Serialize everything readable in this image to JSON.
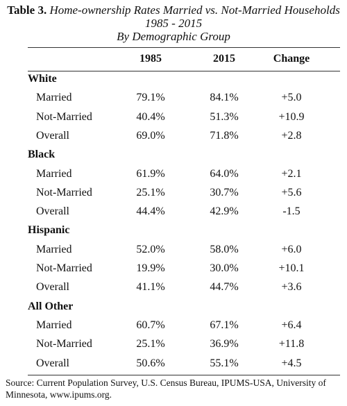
{
  "header": {
    "label": "Table 3.",
    "title": "Home-ownership Rates Married vs. Not-Married Households",
    "subtitle": "1985 - 2015",
    "subtitle2": "By Demographic Group"
  },
  "table": {
    "columns": [
      "1985",
      "2015",
      "Change"
    ],
    "groups": [
      {
        "name": "White",
        "rows": [
          [
            "Married",
            "79.1%",
            "84.1%",
            "+5.0"
          ],
          [
            "Not-Married",
            "40.4%",
            "51.3%",
            "+10.9"
          ],
          [
            "Overall",
            "69.0%",
            "71.8%",
            "+2.8"
          ]
        ]
      },
      {
        "name": "Black",
        "rows": [
          [
            "Married",
            "61.9%",
            "64.0%",
            "+2.1"
          ],
          [
            "Not-Married",
            "25.1%",
            "30.7%",
            "+5.6"
          ],
          [
            "Overall",
            "44.4%",
            "42.9%",
            "-1.5"
          ]
        ]
      },
      {
        "name": "Hispanic",
        "rows": [
          [
            "Married",
            "52.0%",
            "58.0%",
            "+6.0"
          ],
          [
            "Not-Married",
            "19.9%",
            "30.0%",
            "+10.1"
          ],
          [
            "Overall",
            "41.1%",
            "44.7%",
            "+3.6"
          ]
        ]
      },
      {
        "name": "All Other",
        "rows": [
          [
            "Married",
            "60.7%",
            "67.1%",
            "+6.4"
          ],
          [
            "Not-Married",
            "25.1%",
            "36.9%",
            "+11.8"
          ],
          [
            "Overall",
            "50.6%",
            "55.1%",
            "+4.5"
          ]
        ]
      }
    ]
  },
  "source": "Source: Current Population Survey, U.S. Census Bureau, IPUMS-USA, University of Minnesota, www.ipums.org."
}
